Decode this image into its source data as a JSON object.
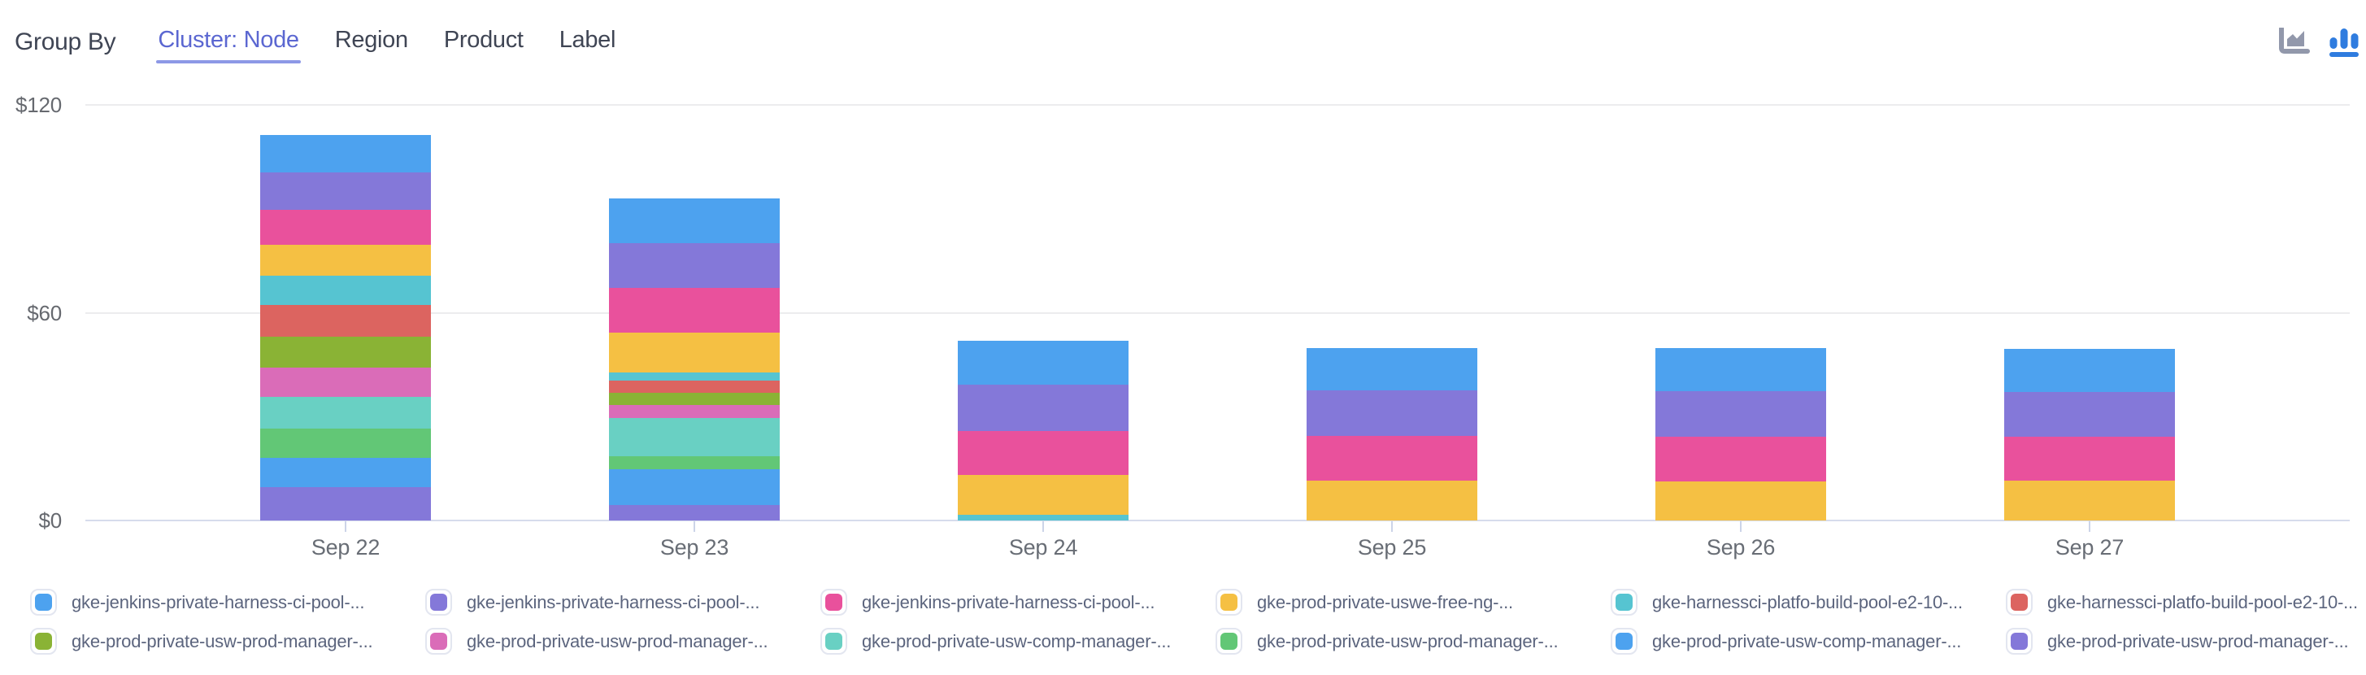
{
  "header": {
    "group_by_label": "Group By",
    "tabs": [
      {
        "label": "Cluster: Node",
        "active": true
      },
      {
        "label": "Region",
        "active": false
      },
      {
        "label": "Product",
        "active": false
      },
      {
        "label": "Label",
        "active": false
      }
    ],
    "chart_type_icons": [
      {
        "name": "area-chart-icon",
        "active": false
      },
      {
        "name": "bar-chart-icon",
        "active": true
      }
    ]
  },
  "colors": {
    "active_tab": "#5b67d1",
    "tab_underline": "#8d98e6",
    "header_text": "#3f4554",
    "grid_line": "#ececee",
    "axis_line": "#d6dcec",
    "tick_mark": "#ccd4e8",
    "axis_text": "#66696f",
    "legend_text": "#5c657e",
    "inactive_icon": "#9298ab",
    "active_icon": "#2f7cdf"
  },
  "chart_data": {
    "type": "bar",
    "stacked": true,
    "stack_order": "first-series-on-top",
    "grid": true,
    "legend_position": "bottom",
    "currency": "$",
    "ylim": [
      0,
      120
    ],
    "y_ticks": [
      {
        "value": 120,
        "label": "$120"
      },
      {
        "value": 60,
        "label": "$60"
      },
      {
        "value": 0,
        "label": "$0"
      }
    ],
    "categories": [
      "Sep 22",
      "Sep 23",
      "Sep 24",
      "Sep 25",
      "Sep 26",
      "Sep 27"
    ],
    "series": [
      {
        "name": "gke-jenkins-private-harness-ci-pool-...",
        "color": "#4DA2EF",
        "values": [
          10.7,
          12.9,
          12.7,
          12.4,
          12.6,
          12.6
        ]
      },
      {
        "name": "gke-jenkins-private-harness-ci-pool-...",
        "color": "#8478D9",
        "values": [
          10.8,
          12.9,
          13.4,
          13.1,
          13.2,
          12.9
        ]
      },
      {
        "name": "gke-jenkins-private-harness-ci-pool-...",
        "color": "#E9519C",
        "values": [
          10.3,
          12.9,
          12.7,
          12.9,
          12.8,
          12.6
        ]
      },
      {
        "name": "gke-prod-private-uswe-free-ng-...",
        "color": "#F5C043",
        "values": [
          8.7,
          11.5,
          11.5,
          11.5,
          11.3,
          11.5
        ]
      },
      {
        "name": "gke-harnessci-platfo-build-pool-e2-10-...",
        "color": "#56C4D1",
        "values": [
          8.5,
          2.3,
          1.6,
          0,
          0,
          0
        ]
      },
      {
        "name": "gke-harnessci-platfo-build-pool-e2-10-...",
        "color": "#DC6460",
        "values": [
          9.2,
          3.5,
          0,
          0,
          0,
          0
        ]
      },
      {
        "name": "gke-prod-private-usw-prod-manager-...",
        "color": "#8AB335",
        "values": [
          8.9,
          3.5,
          0,
          0,
          0,
          0
        ]
      },
      {
        "name": "gke-prod-private-usw-prod-manager-...",
        "color": "#DA6CB8",
        "values": [
          8.5,
          3.7,
          0,
          0,
          0,
          0
        ]
      },
      {
        "name": "gke-prod-private-usw-comp-manager-...",
        "color": "#69D0C3",
        "values": [
          9.1,
          11.2,
          0,
          0,
          0,
          0
        ]
      },
      {
        "name": "gke-prod-private-usw-prod-manager-...",
        "color": "#62C776",
        "values": [
          8.5,
          3.7,
          0,
          0,
          0,
          0
        ]
      },
      {
        "name": "gke-prod-private-usw-comp-manager-...",
        "color": "#4DA2EF",
        "values": [
          8.5,
          10.3,
          0,
          0,
          0,
          0
        ]
      },
      {
        "name": "gke-prod-private-usw-prod-manager-...",
        "color": "#8478D9",
        "values": [
          9.6,
          4.5,
          0,
          0,
          0,
          0
        ]
      }
    ]
  }
}
